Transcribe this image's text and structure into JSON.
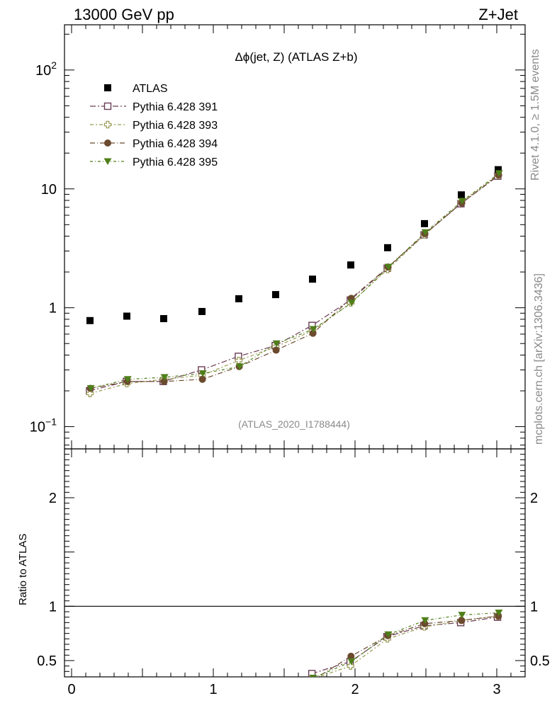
{
  "header": {
    "left": "13000 GeV pp",
    "right": "Z+Jet"
  },
  "side": {
    "top": "Rivet 4.1.0, ≥ 1.5M events",
    "bottom": "mcplots.cern.ch [arXiv:1306.3436]"
  },
  "colors": {
    "atlas": "#000000",
    "s391": "#6a3d55",
    "s393": "#9a9a55",
    "s394": "#6b4a2e",
    "s395": "#4f7f1a"
  },
  "chart_data": [
    {
      "type": "scatter",
      "title": "Δϕ(jet, Z) (ATLAS Z+b)",
      "watermark": "(ATLAS_2020_I1788444)",
      "xlim": [
        -0.05,
        3.2
      ],
      "ylim": [
        0.065,
        240
      ],
      "yscale": "log",
      "yticks": [
        {
          "v": 0.1,
          "base": "10",
          "exp": "−1"
        },
        {
          "v": 1,
          "base": "1",
          "exp": ""
        },
        {
          "v": 10,
          "base": "10",
          "exp": ""
        },
        {
          "v": 100,
          "base": "10",
          "exp": "2"
        }
      ],
      "x": [
        0.13,
        0.39,
        0.65,
        0.92,
        1.18,
        1.44,
        1.7,
        1.97,
        2.23,
        2.49,
        2.75,
        3.01
      ],
      "series": [
        {
          "name": "ATLAS",
          "marker": "square-filled",
          "color_key": "atlas",
          "line": false,
          "values": [
            0.78,
            0.85,
            0.81,
            0.93,
            1.19,
            1.29,
            1.74,
            2.29,
            3.2,
            5.1,
            8.9,
            14.5
          ]
        },
        {
          "name": "Pythia 6.428 391",
          "marker": "square-open",
          "color_key": "s391",
          "line": true,
          "values": [
            0.2,
            0.24,
            0.24,
            0.3,
            0.39,
            0.48,
            0.71,
            1.16,
            2.15,
            4.1,
            7.5,
            12.8
          ]
        },
        {
          "name": "Pythia 6.428 393",
          "marker": "cross-open",
          "color_key": "s393",
          "line": true,
          "values": [
            0.19,
            0.23,
            0.25,
            0.27,
            0.36,
            0.47,
            0.64,
            1.1,
            2.1,
            4.1,
            7.7,
            13.0
          ]
        },
        {
          "name": "Pythia 6.428 394",
          "marker": "circle-filled",
          "color_key": "s394",
          "line": true,
          "values": [
            0.21,
            0.24,
            0.24,
            0.25,
            0.32,
            0.44,
            0.61,
            1.2,
            2.2,
            4.2,
            7.6,
            13.1
          ]
        },
        {
          "name": "Pythia 6.428 395",
          "marker": "triangle-down-filled",
          "color_key": "s395",
          "line": true,
          "values": [
            0.21,
            0.25,
            0.26,
            0.28,
            0.32,
            0.5,
            0.66,
            1.1,
            2.2,
            4.3,
            7.9,
            13.5
          ]
        }
      ]
    },
    {
      "type": "scatter",
      "ylabel": "Ratio to ATLAS",
      "xlim": [
        -0.05,
        3.2
      ],
      "ylim": [
        0.35,
        2.45
      ],
      "yticks": [
        0.5,
        1,
        2
      ],
      "xticks": [
        0,
        1,
        2,
        3
      ],
      "reference": 1,
      "x": [
        1.7,
        1.97,
        2.23,
        2.49,
        2.75,
        3.01
      ],
      "series": [
        {
          "name": "Pythia 6.428 391",
          "color_key": "s391",
          "marker": "square-open",
          "values": [
            0.38,
            0.49,
            0.72,
            0.82,
            0.85,
            0.9
          ]
        },
        {
          "name": "Pythia 6.428 393",
          "color_key": "s393",
          "marker": "cross-open",
          "values": [
            0.33,
            0.45,
            0.7,
            0.81,
            0.87,
            0.91
          ]
        },
        {
          "name": "Pythia 6.428 394",
          "color_key": "s394",
          "marker": "circle-filled",
          "values": [
            0.32,
            0.54,
            0.73,
            0.84,
            0.87,
            0.91
          ]
        },
        {
          "name": "Pythia 6.428 395",
          "color_key": "s395",
          "marker": "triangle-down-filled",
          "values": [
            0.34,
            0.49,
            0.74,
            0.87,
            0.92,
            0.94
          ]
        }
      ]
    }
  ]
}
